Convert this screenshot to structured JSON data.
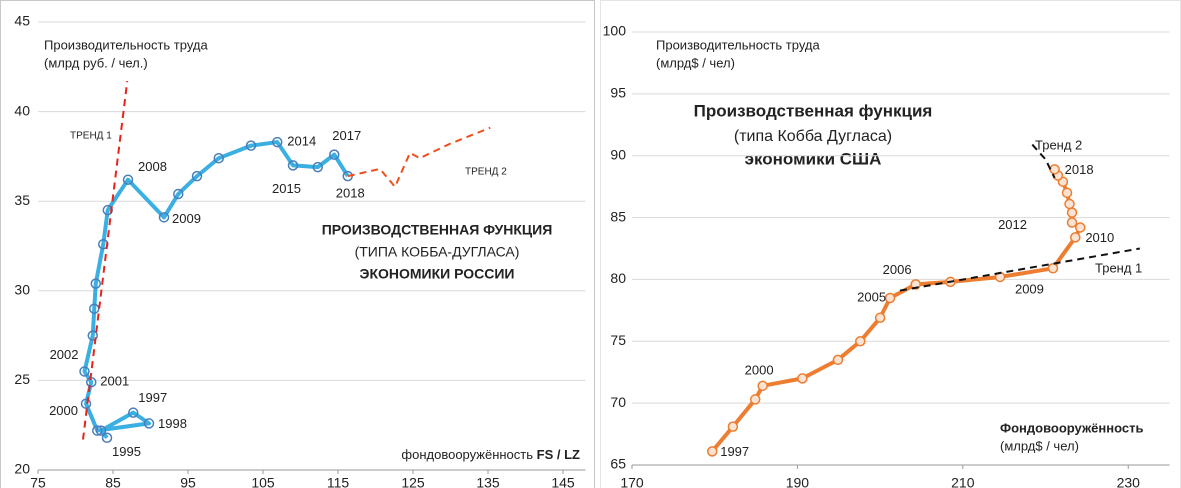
{
  "chart_data": [
    {
      "type": "line",
      "ylabel": [
        "Производительность труда",
        "(млрд руб. / чел.)"
      ],
      "xlabel": [
        "фондовооружённость",
        "FS / LZ"
      ],
      "annotations": [
        "ПРОИЗВОДСТВЕННАЯ ФУНКЦИЯ",
        "(ТИПА КОББА-ДУГЛАСА)",
        "ЭКОНОМИКИ РОССИИ"
      ],
      "xlim": [
        75,
        148
      ],
      "xticks": [
        75,
        85,
        95,
        105,
        115,
        125,
        135,
        145
      ],
      "ylim": [
        20,
        45
      ],
      "yticks": [
        20,
        25,
        30,
        35,
        40,
        45
      ],
      "grid": true,
      "series": [
        {
          "color": "#3ab0e2",
          "marker_color": "#4a7ebb",
          "x": [
            84.2,
            83.4,
            87.7,
            89.8,
            82.9,
            81.4,
            82.1,
            81.2,
            82.3,
            82.5,
            82.7,
            83.7,
            84.3,
            87.0,
            91.8,
            93.7,
            96.2,
            99.1,
            103.4,
            106.9,
            109.0,
            112.3,
            114.5,
            116.3
          ],
          "values": [
            21.8,
            22.2,
            23.2,
            22.6,
            22.2,
            23.7,
            24.9,
            25.5,
            27.5,
            29.0,
            30.4,
            32.6,
            34.5,
            36.2,
            34.1,
            35.4,
            36.4,
            37.4,
            38.1,
            38.3,
            37.0,
            36.9,
            37.6,
            36.4
          ],
          "point_labels": [
            "1995",
            null,
            "1997",
            "1998",
            null,
            "2000",
            "2001",
            "2002",
            null,
            null,
            null,
            null,
            null,
            "2008",
            "2009",
            null,
            null,
            null,
            null,
            "2014",
            "2015",
            null,
            "2017",
            "2018"
          ]
        },
        {
          "name": "ТРЕНД 1",
          "color": "#e8231b",
          "dashed": true,
          "x": [
            81.0,
            86.9
          ],
          "values": [
            21.7,
            41.7
          ]
        },
        {
          "name": "ТРЕНД 2",
          "color": "#f04e1d",
          "dashed": true,
          "x": [
            116.3,
            120.6,
            122.6,
            124.6,
            125.9,
            129.9,
            135.3
          ],
          "values": [
            36.4,
            36.8,
            35.8,
            37.7,
            37.4,
            38.2,
            39.1
          ]
        }
      ]
    },
    {
      "type": "line",
      "ylabel": [
        "Производительность труда",
        "(млрд$ / чел)"
      ],
      "xlabel": [
        "Фондовооружённость",
        "(млрд$ / чел)"
      ],
      "annotations": [
        "Производственная функция",
        "(типа Кобба Дугласа)",
        "экономики США"
      ],
      "xlim": [
        170,
        235
      ],
      "xticks": [
        170,
        190,
        210,
        230
      ],
      "ylim": [
        65,
        100
      ],
      "yticks": [
        65,
        70,
        75,
        80,
        85,
        90,
        95,
        100
      ],
      "grid": true,
      "series": [
        {
          "color": "#ed7d31",
          "marker_color": "#ed7d31",
          "x": [
            179.7,
            182.2,
            184.9,
            185.8,
            190.6,
            194.9,
            197.6,
            200.0,
            201.2,
            204.3,
            208.5,
            214.5,
            220.9,
            223.6,
            224.2,
            223.2,
            223.2,
            222.9,
            222.6,
            222.1,
            221.5,
            221.1
          ],
          "values": [
            66.1,
            68.1,
            70.3,
            71.4,
            72.0,
            73.5,
            75.0,
            76.9,
            78.5,
            79.6,
            79.8,
            80.2,
            80.9,
            83.4,
            84.2,
            84.6,
            85.4,
            86.1,
            87.0,
            87.9,
            88.4,
            88.9
          ],
          "point_labels": [
            "1997",
            null,
            null,
            "2000",
            null,
            null,
            null,
            null,
            "2005",
            "2006",
            null,
            null,
            "2009",
            "2010",
            null,
            "2012",
            null,
            null,
            null,
            null,
            null,
            "2018"
          ]
        },
        {
          "name": "Тренд 1",
          "color": "#111111",
          "dashed": true,
          "x": [
            202.4,
            231.4
          ],
          "values": [
            79.1,
            82.5
          ]
        },
        {
          "name": "Тренд 2",
          "color": "#111111",
          "dashed": true,
          "x": [
            218.4,
            220.0,
            221.1
          ],
          "values": [
            90.9,
            89.7,
            88.2
          ]
        }
      ]
    }
  ]
}
